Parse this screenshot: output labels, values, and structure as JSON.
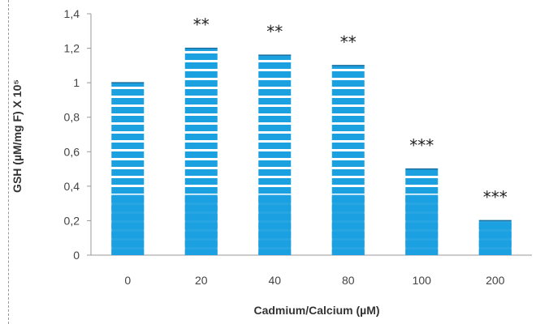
{
  "chart_data": {
    "type": "bar",
    "categories": [
      "0",
      "20",
      "40",
      "80",
      "100",
      "200"
    ],
    "values": [
      1.0,
      1.2,
      1.16,
      1.1,
      0.5,
      0.2
    ],
    "annotations": [
      "",
      "**",
      "**",
      "**",
      "***",
      "***"
    ],
    "xlabel": "Cadmium/Calcium  (µM)",
    "ylabel": "GSH (µM/mg F) X 10⁵",
    "ylim": [
      0,
      1.4
    ],
    "yticks": [
      "0",
      "0,2",
      "0,4",
      "0,6",
      "0,8",
      "1",
      "1,2",
      "1,4"
    ],
    "grid": false,
    "legend": "none",
    "colors": {
      "bar": "#1ba0e0",
      "stripe": "#ffffff",
      "axis": "#999999"
    }
  }
}
